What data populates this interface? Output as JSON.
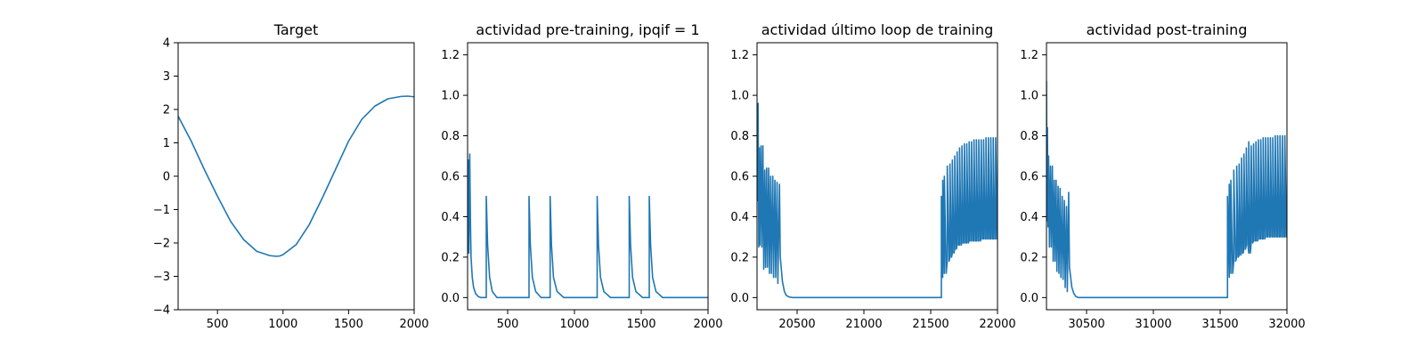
{
  "figure": {
    "line_color": "#1f77b4",
    "background": "#ffffff"
  },
  "chart_data": [
    {
      "type": "line",
      "title": "Target",
      "xlim": [
        200,
        2000
      ],
      "ylim": [
        -4,
        4
      ],
      "xticks": [
        500,
        1000,
        1500,
        2000
      ],
      "yticks": [
        -4,
        -3,
        -2,
        -1,
        0,
        1,
        2,
        3,
        4
      ],
      "ytick_labels": [
        "−4",
        "−3",
        "−2",
        "−1",
        "0",
        "1",
        "2",
        "3",
        "4"
      ],
      "grid": false,
      "series": [
        {
          "x": [
            200,
            300,
            400,
            500,
            600,
            700,
            800,
            900,
            950,
            975,
            1000,
            1100,
            1200,
            1300,
            1400,
            1500,
            1600,
            1700,
            1800,
            1900,
            1950,
            2000
          ],
          "y": [
            1.8,
            1.05,
            0.2,
            -0.6,
            -1.35,
            -1.9,
            -2.25,
            -2.38,
            -2.4,
            -2.39,
            -2.35,
            -2.05,
            -1.45,
            -0.65,
            0.2,
            1.05,
            1.7,
            2.1,
            2.32,
            2.39,
            2.4,
            2.38
          ]
        }
      ]
    },
    {
      "type": "line",
      "title": "actividad pre-training, ipqif = 1",
      "xlim": [
        200,
        2000
      ],
      "ylim": [
        -0.06,
        1.26
      ],
      "xticks": [
        500,
        1000,
        1500,
        2000
      ],
      "yticks": [
        0.0,
        0.2,
        0.4,
        0.6,
        0.8,
        1.0,
        1.2
      ],
      "ytick_labels": [
        "0.0",
        "0.2",
        "0.4",
        "0.6",
        "0.8",
        "1.0",
        "1.2"
      ],
      "grid": false,
      "series": [
        {
          "x": [
            200,
            203,
            206,
            210,
            214,
            216,
            222,
            226,
            235,
            245,
            260,
            280,
            300,
            340,
            340,
            350,
            365,
            385,
            420,
            660,
            660,
            670,
            685,
            710,
            750,
            818,
            818,
            828,
            843,
            870,
            920,
            1170,
            1170,
            1180,
            1195,
            1220,
            1270,
            1410,
            1410,
            1420,
            1435,
            1460,
            1510,
            1560,
            1560,
            1570,
            1585,
            1610,
            1660,
            2000
          ],
          "y": [
            0.22,
            0.45,
            0.68,
            0.22,
            0.55,
            0.71,
            0.35,
            0.2,
            0.1,
            0.05,
            0.02,
            0.005,
            0.0,
            0.0,
            0.5,
            0.26,
            0.1,
            0.03,
            0.0,
            0.0,
            0.5,
            0.26,
            0.1,
            0.03,
            0.0,
            0.0,
            0.5,
            0.26,
            0.1,
            0.03,
            0.0,
            0.0,
            0.5,
            0.26,
            0.1,
            0.03,
            0.0,
            0.0,
            0.5,
            0.26,
            0.1,
            0.03,
            0.0,
            0.0,
            0.5,
            0.26,
            0.1,
            0.03,
            0.0,
            0.0
          ]
        }
      ]
    },
    {
      "type": "line",
      "title": "actividad último loop de training",
      "xlim": [
        20200,
        22000
      ],
      "ylim": [
        -0.06,
        1.26
      ],
      "xticks": [
        20500,
        21000,
        21500,
        22000
      ],
      "yticks": [
        0.0,
        0.2,
        0.4,
        0.6,
        0.8,
        1.0,
        1.2
      ],
      "ytick_labels": [
        "0.0",
        "0.2",
        "0.4",
        "0.6",
        "0.8",
        "1.0",
        "1.2"
      ],
      "grid": false,
      "series": [
        {
          "x": [
            20200,
            20204,
            20208,
            20213,
            20217,
            20222,
            20230,
            20236,
            20244,
            20250,
            20258,
            20264,
            20272,
            20278,
            20287,
            20293,
            20302,
            20308,
            20318,
            20324,
            20334,
            20340,
            20350,
            20356,
            20368,
            20374,
            20390,
            20405,
            20420,
            20440,
            20470,
            20500,
            21580,
            21580,
            21590,
            21590,
            21602,
            21602,
            21616,
            21624,
            21624,
            21638,
            21644,
            21644,
            21656,
            21662,
            21662,
            21674,
            21680,
            21680,
            21692,
            21698,
            21698,
            21710,
            21716,
            21716,
            21728,
            21734,
            21734,
            21746,
            21752,
            21752,
            21764,
            21770,
            21770,
            21782,
            21788,
            21788,
            21800,
            21806,
            21806,
            21818,
            21824,
            21824,
            21836,
            21842,
            21842,
            21854,
            21860,
            21860,
            21872,
            21878,
            21878,
            21890,
            21896,
            21896,
            21908,
            21914,
            21914,
            21926,
            21932,
            21932,
            21944,
            21950,
            21950,
            21962,
            21968,
            21968,
            21980,
            21986,
            21986,
            21998,
            22000
          ],
          "y": [
            0.95,
            0.48,
            0.96,
            0.25,
            0.74,
            0.26,
            0.75,
            0.25,
            0.75,
            0.14,
            0.63,
            0.15,
            0.64,
            0.15,
            0.64,
            0.12,
            0.6,
            0.12,
            0.6,
            0.1,
            0.58,
            0.1,
            0.57,
            0.07,
            0.56,
            0.2,
            0.08,
            0.03,
            0.01,
            0.003,
            0.0,
            0.0,
            0.0,
            0.5,
            0.1,
            0.58,
            0.12,
            0.6,
            0.12,
            0.18,
            0.65,
            0.18,
            0.2,
            0.66,
            0.2,
            0.22,
            0.68,
            0.22,
            0.24,
            0.7,
            0.24,
            0.26,
            0.72,
            0.26,
            0.26,
            0.74,
            0.26,
            0.27,
            0.75,
            0.27,
            0.27,
            0.76,
            0.27,
            0.27,
            0.76,
            0.27,
            0.28,
            0.77,
            0.28,
            0.28,
            0.77,
            0.28,
            0.28,
            0.78,
            0.28,
            0.28,
            0.78,
            0.28,
            0.28,
            0.78,
            0.28,
            0.29,
            0.78,
            0.29,
            0.29,
            0.78,
            0.29,
            0.29,
            0.79,
            0.29,
            0.29,
            0.79,
            0.29,
            0.29,
            0.79,
            0.29,
            0.29,
            0.79,
            0.29,
            0.29,
            0.79,
            0.29,
            0.4
          ]
        }
      ]
    },
    {
      "type": "line",
      "title": "actividad post-training",
      "xlim": [
        30200,
        32000
      ],
      "ylim": [
        -0.06,
        1.26
      ],
      "xticks": [
        30500,
        31000,
        31500,
        32000
      ],
      "yticks": [
        0.0,
        0.2,
        0.4,
        0.6,
        0.8,
        1.0,
        1.2
      ],
      "ytick_labels": [
        "0.0",
        "0.2",
        "0.4",
        "0.6",
        "0.8",
        "1.0",
        "1.2"
      ],
      "grid": false,
      "series": [
        {
          "x": [
            30200,
            30203,
            30207,
            30212,
            30216,
            30222,
            30230,
            30236,
            30244,
            30250,
            30258,
            30264,
            30272,
            30278,
            30287,
            30293,
            30302,
            30308,
            30318,
            30324,
            30334,
            30340,
            30350,
            30356,
            30366,
            30372,
            30390,
            30405,
            30420,
            30440,
            30470,
            30500,
            31555,
            31555,
            31568,
            31568,
            31580,
            31580,
            31594,
            31602,
            31602,
            31616,
            31624,
            31624,
            31636,
            31642,
            31642,
            31654,
            31660,
            31660,
            31672,
            31678,
            31678,
            31690,
            31696,
            31696,
            31708,
            31714,
            31714,
            31726,
            31732,
            31732,
            31744,
            31750,
            31750,
            31762,
            31768,
            31768,
            31780,
            31786,
            31786,
            31798,
            31804,
            31804,
            31816,
            31822,
            31822,
            31834,
            31840,
            31840,
            31852,
            31858,
            31858,
            31870,
            31876,
            31876,
            31888,
            31894,
            31894,
            31906,
            31912,
            31912,
            31924,
            31930,
            31930,
            31942,
            31948,
            31948,
            31960,
            31966,
            31966,
            31978,
            31984,
            31984,
            31996,
            32000
          ],
          "y": [
            1.07,
            0.38,
            0.84,
            0.35,
            0.7,
            0.25,
            0.65,
            0.25,
            0.65,
            0.18,
            0.58,
            0.18,
            0.58,
            0.13,
            0.55,
            0.12,
            0.54,
            0.1,
            0.5,
            0.09,
            0.48,
            0.05,
            0.45,
            0.03,
            0.52,
            0.15,
            0.05,
            0.02,
            0.005,
            0.0,
            0.0,
            0.0,
            0.0,
            0.5,
            0.1,
            0.56,
            0.12,
            0.58,
            0.12,
            0.18,
            0.63,
            0.18,
            0.2,
            0.65,
            0.2,
            0.21,
            0.66,
            0.21,
            0.22,
            0.69,
            0.22,
            0.24,
            0.71,
            0.24,
            0.26,
            0.74,
            0.26,
            0.22,
            0.77,
            0.22,
            0.27,
            0.75,
            0.27,
            0.28,
            0.76,
            0.28,
            0.28,
            0.77,
            0.28,
            0.29,
            0.78,
            0.29,
            0.29,
            0.78,
            0.29,
            0.29,
            0.79,
            0.29,
            0.3,
            0.79,
            0.3,
            0.3,
            0.79,
            0.3,
            0.3,
            0.79,
            0.3,
            0.3,
            0.79,
            0.3,
            0.3,
            0.8,
            0.3,
            0.3,
            0.8,
            0.3,
            0.3,
            0.8,
            0.3,
            0.3,
            0.8,
            0.3,
            0.3,
            0.8,
            0.3,
            0.3
          ]
        }
      ]
    }
  ]
}
